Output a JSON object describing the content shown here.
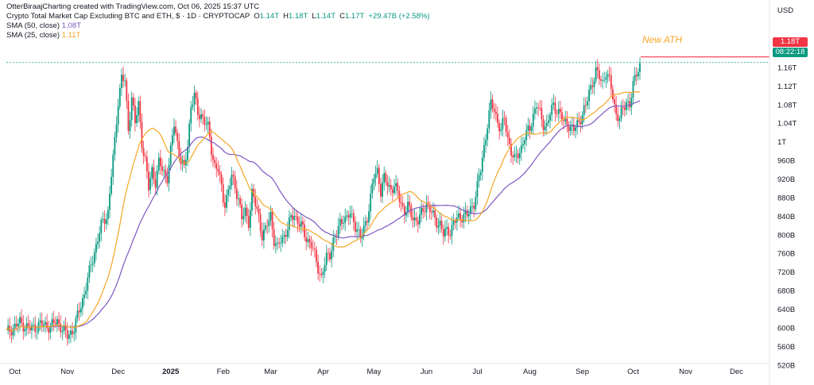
{
  "header": {
    "attribution": "OtterBiraajCharting created with TradingView.com, Oct 06, 2025 15:37 UTC",
    "symbol": "Crypto Total Market Cap Excluding BTC and ETH, $ · 1D · CRYPTOCAP",
    "ohlc": {
      "o_label": "O",
      "o": "1.14T",
      "h_label": "H",
      "h": "1.18T",
      "l_label": "L",
      "l": "1.14T",
      "c_label": "C",
      "c": "1.17T",
      "change": "+29.47B (+2.58%)"
    },
    "sma50_label": "SMA (50, close)",
    "sma50_value": "1.08T",
    "sma25_label": "SMA (25, close)",
    "sma25_value": "1.11T"
  },
  "price_axis": {
    "currency": "USD",
    "last_price_tag": "1.18T",
    "countdown_tag": "08:22:18"
  },
  "annotation": "New ATH",
  "colors": {
    "up": "#089981",
    "down": "#f23645",
    "sma50": "#7e57c2",
    "sma25": "#f5a623",
    "ath": "#f5a623"
  },
  "chart_data": {
    "type": "candlestick",
    "y_unit": "USD",
    "ylim": [
      500,
      1200
    ],
    "grid": false,
    "y_ticks": [
      {
        "v": 1160,
        "label": "1.16T"
      },
      {
        "v": 1120,
        "label": "1.12T"
      },
      {
        "v": 1080,
        "label": "1.08T"
      },
      {
        "v": 1040,
        "label": "1.04T"
      },
      {
        "v": 1000,
        "label": "1T"
      },
      {
        "v": 960,
        "label": "960B"
      },
      {
        "v": 920,
        "label": "920B"
      },
      {
        "v": 880,
        "label": "880B"
      },
      {
        "v": 840,
        "label": "840B"
      },
      {
        "v": 800,
        "label": "800B"
      },
      {
        "v": 760,
        "label": "760B"
      },
      {
        "v": 720,
        "label": "720B"
      },
      {
        "v": 680,
        "label": "680B"
      },
      {
        "v": 640,
        "label": "640B"
      },
      {
        "v": 600,
        "label": "600B"
      },
      {
        "v": 560,
        "label": "560B"
      },
      {
        "v": 520,
        "label": "520B"
      }
    ],
    "x_ticks": [
      {
        "day": 5,
        "label": "Oct",
        "bold": false
      },
      {
        "day": 36,
        "label": "Nov",
        "bold": false
      },
      {
        "day": 66,
        "label": "Dec",
        "bold": false
      },
      {
        "day": 97,
        "label": "2025",
        "bold": true
      },
      {
        "day": 128,
        "label": "Feb",
        "bold": false
      },
      {
        "day": 156,
        "label": "Mar",
        "bold": false
      },
      {
        "day": 187,
        "label": "Apr",
        "bold": false
      },
      {
        "day": 217,
        "label": "May",
        "bold": false
      },
      {
        "day": 248,
        "label": "Jun",
        "bold": false
      },
      {
        "day": 278,
        "label": "Jul",
        "bold": false
      },
      {
        "day": 309,
        "label": "Aug",
        "bold": false
      },
      {
        "day": 340,
        "label": "Sep",
        "bold": false
      },
      {
        "day": 370,
        "label": "Oct",
        "bold": false
      },
      {
        "day": 401,
        "label": "Nov",
        "bold": false
      },
      {
        "day": 431,
        "label": "Dec",
        "bold": false
      }
    ],
    "x_day_range": [
      0,
      452
    ],
    "ath_level": 1180,
    "close_anchors": [
      [
        0,
        590
      ],
      [
        8,
        612
      ],
      [
        14,
        598
      ],
      [
        20,
        608
      ],
      [
        26,
        604
      ],
      [
        30,
        615
      ],
      [
        36,
        583
      ],
      [
        40,
        600
      ],
      [
        46,
        675
      ],
      [
        52,
        765
      ],
      [
        56,
        820
      ],
      [
        60,
        850
      ],
      [
        62,
        930
      ],
      [
        64,
        1000
      ],
      [
        66,
        1090
      ],
      [
        68,
        1140
      ],
      [
        70,
        1130
      ],
      [
        72,
        1025
      ],
      [
        74,
        1100
      ],
      [
        76,
        1040
      ],
      [
        78,
        1080
      ],
      [
        80,
        1000
      ],
      [
        82,
        960
      ],
      [
        84,
        900
      ],
      [
        86,
        940
      ],
      [
        88,
        915
      ],
      [
        90,
        955
      ],
      [
        93,
        935
      ],
      [
        95,
        925
      ],
      [
        97,
        980
      ],
      [
        99,
        1040
      ],
      [
        101,
        1000
      ],
      [
        103,
        960
      ],
      [
        105,
        940
      ],
      [
        107,
        995
      ],
      [
        109,
        1080
      ],
      [
        111,
        1100
      ],
      [
        113,
        1060
      ],
      [
        115,
        1060
      ],
      [
        117,
        1045
      ],
      [
        119,
        1030
      ],
      [
        121,
        985
      ],
      [
        123,
        950
      ],
      [
        125,
        940
      ],
      [
        127,
        900
      ],
      [
        128,
        880
      ],
      [
        129,
        870
      ],
      [
        131,
        895
      ],
      [
        133,
        925
      ],
      [
        135,
        905
      ],
      [
        137,
        880
      ],
      [
        139,
        835
      ],
      [
        141,
        850
      ],
      [
        143,
        830
      ],
      [
        145,
        890
      ],
      [
        147,
        865
      ],
      [
        149,
        840
      ],
      [
        151,
        800
      ],
      [
        153,
        810
      ],
      [
        156,
        845
      ],
      [
        158,
        790
      ],
      [
        160,
        770
      ],
      [
        162,
        790
      ],
      [
        164,
        800
      ],
      [
        166,
        815
      ],
      [
        168,
        835
      ],
      [
        170,
        845
      ],
      [
        172,
        830
      ],
      [
        174,
        820
      ],
      [
        176,
        800
      ],
      [
        178,
        790
      ],
      [
        180,
        780
      ],
      [
        182,
        755
      ],
      [
        184,
        730
      ],
      [
        186,
        710
      ],
      [
        187,
        725
      ],
      [
        189,
        750
      ],
      [
        191,
        760
      ],
      [
        193,
        790
      ],
      [
        195,
        800
      ],
      [
        197,
        825
      ],
      [
        199,
        840
      ],
      [
        201,
        835
      ],
      [
        203,
        845
      ],
      [
        205,
        830
      ],
      [
        207,
        815
      ],
      [
        209,
        790
      ],
      [
        211,
        815
      ],
      [
        213,
        840
      ],
      [
        215,
        880
      ],
      [
        217,
        925
      ],
      [
        219,
        940
      ],
      [
        221,
        895
      ],
      [
        223,
        920
      ],
      [
        225,
        910
      ],
      [
        227,
        900
      ],
      [
        229,
        905
      ],
      [
        231,
        890
      ],
      [
        233,
        870
      ],
      [
        235,
        850
      ],
      [
        237,
        860
      ],
      [
        239,
        845
      ],
      [
        241,
        835
      ],
      [
        243,
        830
      ],
      [
        245,
        845
      ],
      [
        248,
        870
      ],
      [
        250,
        855
      ],
      [
        252,
        840
      ],
      [
        254,
        830
      ],
      [
        256,
        825
      ],
      [
        258,
        800
      ],
      [
        260,
        810
      ],
      [
        262,
        810
      ],
      [
        264,
        825
      ],
      [
        266,
        835
      ],
      [
        268,
        840
      ],
      [
        270,
        845
      ],
      [
        272,
        840
      ],
      [
        274,
        855
      ],
      [
        276,
        870
      ],
      [
        278,
        905
      ],
      [
        280,
        940
      ],
      [
        282,
        990
      ],
      [
        284,
        1040
      ],
      [
        286,
        1080
      ],
      [
        288,
        1070
      ],
      [
        290,
        1045
      ],
      [
        292,
        1025
      ],
      [
        294,
        1050
      ],
      [
        296,
        1010
      ],
      [
        298,
        980
      ],
      [
        300,
        960
      ],
      [
        302,
        975
      ],
      [
        304,
        990
      ],
      [
        306,
        1010
      ],
      [
        309,
        1030
      ],
      [
        311,
        1060
      ],
      [
        313,
        1080
      ],
      [
        315,
        1060
      ],
      [
        317,
        1040
      ],
      [
        319,
        1035
      ],
      [
        321,
        1060
      ],
      [
        323,
        1080
      ],
      [
        325,
        1070
      ],
      [
        327,
        1060
      ],
      [
        329,
        1040
      ],
      [
        331,
        1045
      ],
      [
        333,
        1030
      ],
      [
        335,
        1025
      ],
      [
        337,
        1040
      ],
      [
        340,
        1060
      ],
      [
        342,
        1075
      ],
      [
        344,
        1110
      ],
      [
        346,
        1130
      ],
      [
        348,
        1150
      ],
      [
        350,
        1140
      ],
      [
        352,
        1130
      ],
      [
        354,
        1150
      ],
      [
        356,
        1130
      ],
      [
        358,
        1100
      ],
      [
        360,
        1060
      ],
      [
        362,
        1050
      ],
      [
        364,
        1070
      ],
      [
        366,
        1090
      ],
      [
        368,
        1080
      ],
      [
        370,
        1120
      ],
      [
        372,
        1150
      ],
      [
        374,
        1170
      ]
    ],
    "series": [
      {
        "name": "SMA (50, close)",
        "last": 1080
      },
      {
        "name": "SMA (25, close)",
        "last": 1110
      }
    ]
  }
}
